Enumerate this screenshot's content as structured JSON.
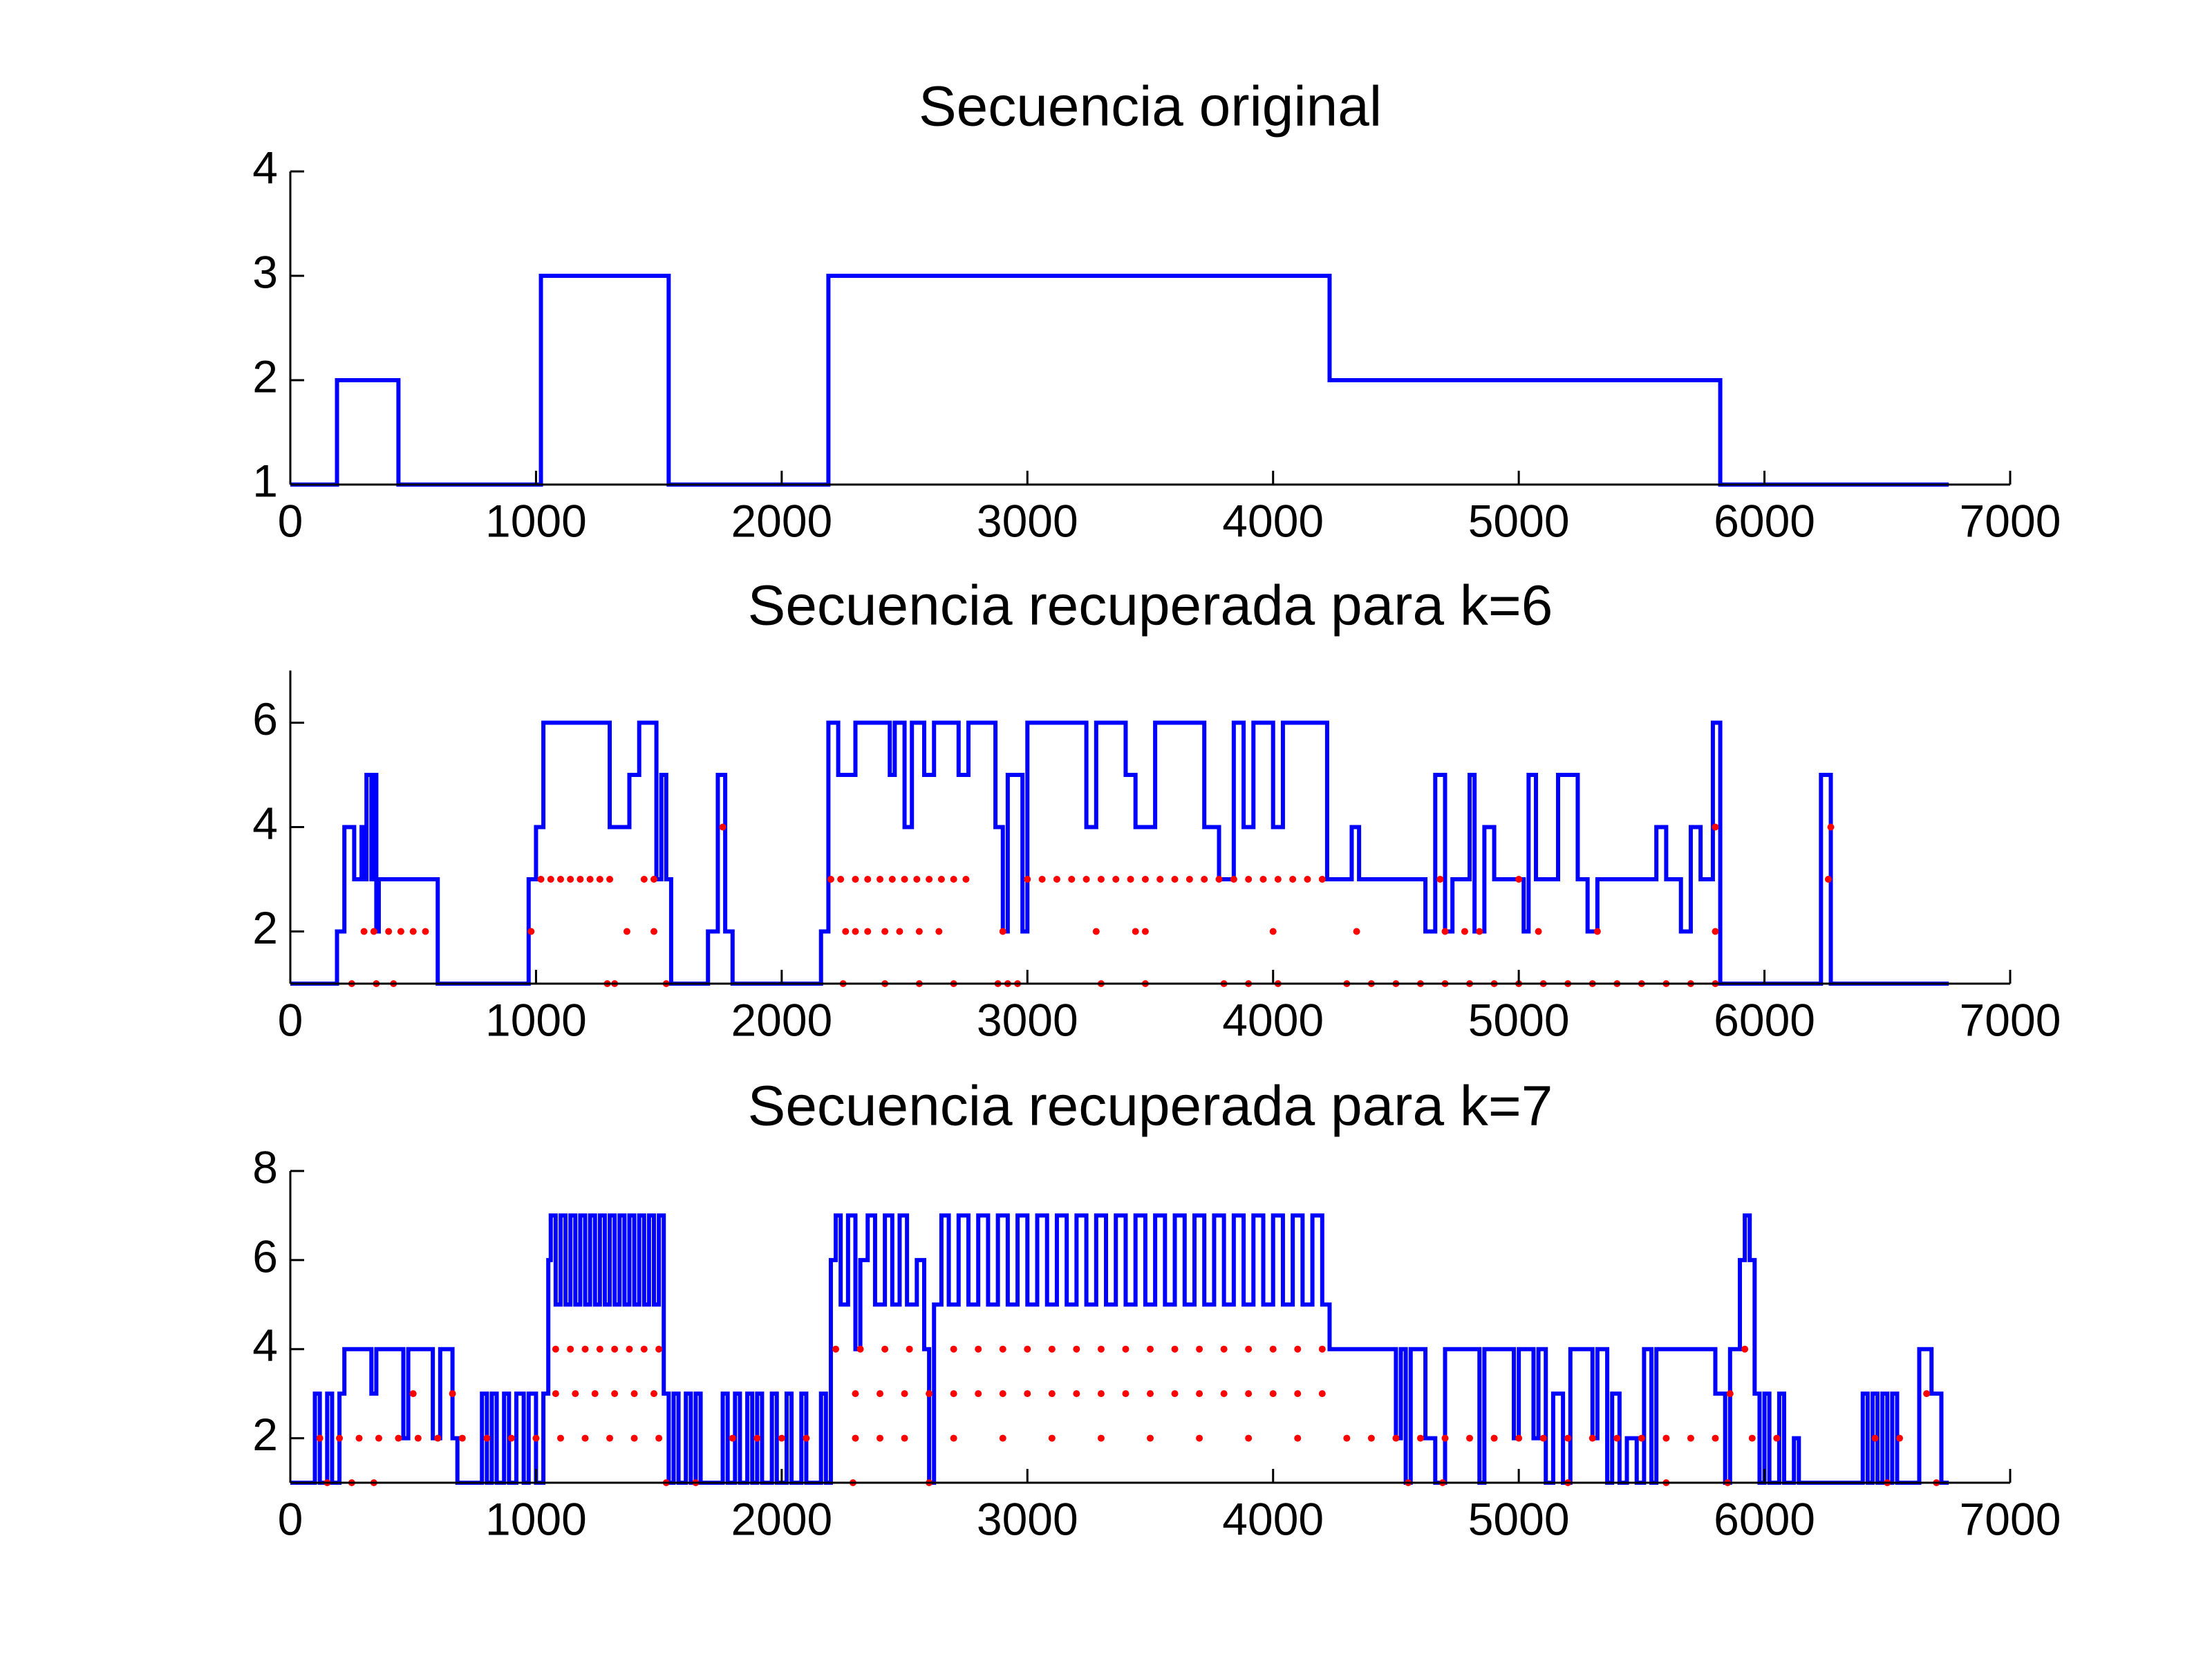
{
  "chart_data": [
    {
      "type": "line",
      "title": "Secuencia original",
      "xlim": [
        0,
        7000
      ],
      "xticks": [
        0,
        1000,
        2000,
        3000,
        4000,
        5000,
        6000,
        7000
      ],
      "ylim": [
        1,
        4
      ],
      "yticks": [
        1,
        2,
        3,
        4
      ],
      "series": [
        {
          "color": "#0000ff",
          "drawstyle": "steps-post",
          "x": [
            0,
            190,
            440,
            1020,
            1540,
            2190,
            4230,
            5820,
            6750
          ],
          "values": [
            1,
            2,
            1,
            3,
            1,
            3,
            2,
            1,
            1
          ]
        }
      ]
    },
    {
      "type": "line",
      "title": "Secuencia recuperada para k=6",
      "xlim": [
        0,
        7000
      ],
      "xticks": [
        0,
        1000,
        2000,
        3000,
        4000,
        5000,
        6000,
        7000
      ],
      "ylim": [
        1,
        7
      ],
      "yticks": [
        2,
        4,
        6
      ],
      "series": [
        {
          "color": "#0000ff",
          "drawstyle": "steps-post",
          "x": [
            0,
            190,
            220,
            260,
            290,
            300,
            310,
            330,
            340,
            350,
            360,
            600,
            970,
            1000,
            1030,
            1300,
            1380,
            1420,
            1490,
            1510,
            1530,
            1550,
            1700,
            1740,
            1770,
            1800,
            2160,
            2190,
            2230,
            2300,
            2440,
            2460,
            2500,
            2530,
            2580,
            2620,
            2720,
            2760,
            2870,
            2900,
            2920,
            2980,
            3000,
            3240,
            3280,
            3400,
            3440,
            3520,
            3720,
            3780,
            3840,
            3880,
            3920,
            4000,
            4040,
            4220,
            4320,
            4350,
            4620,
            4660,
            4700,
            4730,
            4800,
            4820,
            4860,
            4900,
            5020,
            5040,
            5070,
            5160,
            5240,
            5280,
            5320,
            5560,
            5600,
            5660,
            5700,
            5740,
            5790,
            5820,
            6230,
            6270,
            6750
          ],
          "values": [
            1,
            2,
            4,
            3,
            4,
            3,
            5,
            3,
            5,
            2,
            3,
            1,
            3,
            4,
            6,
            4,
            5,
            6,
            3,
            5,
            3,
            1,
            2,
            5,
            2,
            1,
            2,
            6,
            5,
            6,
            5,
            6,
            4,
            6,
            5,
            6,
            5,
            6,
            4,
            2,
            5,
            2,
            6,
            4,
            6,
            5,
            4,
            6,
            4,
            3,
            6,
            4,
            6,
            4,
            6,
            3,
            4,
            3,
            2,
            5,
            2,
            3,
            5,
            2,
            4,
            3,
            2,
            5,
            3,
            5,
            3,
            2,
            3,
            4,
            3,
            2,
            4,
            3,
            6,
            1,
            5,
            1,
            1
          ]
        },
        {
          "color": "#ff0000",
          "marker": "dot",
          "x": [
            1020,
            1060,
            1100,
            1140,
            1180,
            1220,
            1260,
            1300,
            1440,
            1480,
            2200,
            2240,
            2300,
            2350,
            2400,
            2450,
            2500,
            2550,
            2600,
            2650,
            2700,
            2750,
            3000,
            3060,
            3120,
            3180,
            3240,
            3300,
            3360,
            3420,
            3480,
            3540,
            3600,
            3660,
            3720,
            3780,
            3840,
            3900,
            3960,
            4020,
            4080,
            4140,
            4200,
            4680,
            5000,
            6260,
            300,
            340,
            400,
            450,
            500,
            550,
            980,
            1370,
            1480,
            2260,
            2300,
            2350,
            2420,
            2480,
            2560,
            2640,
            2900,
            3280,
            3440,
            3480,
            4000,
            4340,
            4700,
            4780,
            4840,
            5080,
            5320,
            5800,
            250,
            350,
            420,
            1290,
            1320,
            1530,
            2250,
            2420,
            2560,
            2700,
            2880,
            2920,
            2960,
            3300,
            3480,
            3800,
            3900,
            4020,
            4300,
            4400,
            4500,
            4600,
            4700,
            4800,
            4900,
            5000,
            5100,
            5200,
            5300,
            5400,
            5500,
            5600,
            5700,
            5800,
            1760,
            5800,
            6270
          ],
          "values": [
            3,
            3,
            3,
            3,
            3,
            3,
            3,
            3,
            3,
            3,
            3,
            3,
            3,
            3,
            3,
            3,
            3,
            3,
            3,
            3,
            3,
            3,
            3,
            3,
            3,
            3,
            3,
            3,
            3,
            3,
            3,
            3,
            3,
            3,
            3,
            3,
            3,
            3,
            3,
            3,
            3,
            3,
            3,
            3,
            3,
            3,
            2,
            2,
            2,
            2,
            2,
            2,
            2,
            2,
            2,
            2,
            2,
            2,
            2,
            2,
            2,
            2,
            2,
            2,
            2,
            2,
            2,
            2,
            2,
            2,
            2,
            2,
            2,
            2,
            1,
            1,
            1,
            1,
            1,
            1,
            1,
            1,
            1,
            1,
            1,
            1,
            1,
            1,
            1,
            1,
            1,
            1,
            1,
            1,
            1,
            1,
            1,
            1,
            1,
            1,
            1,
            1,
            1,
            1,
            1,
            1,
            1,
            1,
            4,
            4,
            4
          ]
        }
      ]
    },
    {
      "type": "line",
      "title": "Secuencia recuperada para k=7",
      "xlim": [
        0,
        7000
      ],
      "xticks": [
        0,
        1000,
        2000,
        3000,
        4000,
        5000,
        6000,
        7000
      ],
      "ylim": [
        1,
        8
      ],
      "yticks": [
        2,
        4,
        6,
        8
      ],
      "series": [
        {
          "color": "#0000ff",
          "drawstyle": "steps-post",
          "x": [
            0,
            100,
            120,
            150,
            170,
            200,
            220,
            330,
            350,
            460,
            480,
            580,
            610,
            660,
            680,
            780,
            800,
            820,
            840,
            870,
            890,
            920,
            950,
            970,
            1000,
            1030,
            1050,
            1060,
            1080,
            1100,
            1120,
            1140,
            1160,
            1180,
            1200,
            1220,
            1240,
            1260,
            1280,
            1300,
            1320,
            1340,
            1360,
            1380,
            1400,
            1420,
            1440,
            1460,
            1480,
            1500,
            1520,
            1540,
            1560,
            1580,
            1610,
            1630,
            1650,
            1670,
            1760,
            1780,
            1810,
            1830,
            1860,
            1880,
            1900,
            1920,
            1960,
            1980,
            2020,
            2040,
            2080,
            2100,
            2160,
            2180,
            2200,
            2220,
            2240,
            2270,
            2300,
            2320,
            2350,
            2380,
            2420,
            2450,
            2480,
            2510,
            2550,
            2580,
            2600,
            2620,
            2650,
            2680,
            2720,
            2760,
            2800,
            2840,
            2880,
            2920,
            2960,
            3000,
            3040,
            3080,
            3120,
            3160,
            3200,
            3240,
            3280,
            3320,
            3360,
            3400,
            3440,
            3480,
            3520,
            3560,
            3600,
            3640,
            3680,
            3720,
            3760,
            3800,
            3840,
            3880,
            3920,
            3960,
            4000,
            4040,
            4080,
            4120,
            4160,
            4200,
            4230,
            4500,
            4520,
            4540,
            4560,
            4620,
            4660,
            4700,
            4840,
            4860,
            4980,
            5000,
            5060,
            5080,
            5110,
            5140,
            5180,
            5210,
            5300,
            5320,
            5360,
            5380,
            5410,
            5440,
            5480,
            5510,
            5540,
            5560,
            5800,
            5840,
            5860,
            5900,
            5920,
            5940,
            5960,
            5980,
            6000,
            6020,
            6060,
            6080,
            6120,
            6140,
            6400,
            6420,
            6440,
            6460,
            6480,
            6500,
            6520,
            6540,
            6630,
            6680,
            6720,
            6750
          ],
          "values": [
            1,
            3,
            1,
            3,
            1,
            3,
            4,
            3,
            4,
            2,
            4,
            2,
            4,
            2,
            1,
            3,
            1,
            3,
            1,
            3,
            1,
            3,
            1,
            3,
            1,
            3,
            6,
            7,
            5,
            7,
            5,
            7,
            5,
            7,
            5,
            7,
            5,
            7,
            5,
            7,
            5,
            7,
            5,
            7,
            5,
            7,
            5,
            7,
            5,
            7,
            3,
            1,
            3,
            1,
            3,
            1,
            3,
            1,
            3,
            1,
            3,
            1,
            3,
            1,
            3,
            1,
            3,
            1,
            3,
            1,
            3,
            1,
            3,
            1,
            6,
            7,
            5,
            7,
            4,
            6,
            7,
            5,
            7,
            5,
            7,
            5,
            6,
            4,
            1,
            5,
            7,
            5,
            7,
            5,
            7,
            5,
            7,
            5,
            7,
            5,
            7,
            5,
            7,
            5,
            7,
            5,
            7,
            5,
            7,
            5,
            7,
            5,
            7,
            5,
            7,
            5,
            7,
            5,
            7,
            5,
            7,
            5,
            7,
            5,
            7,
            5,
            7,
            5,
            7,
            5,
            4,
            2,
            4,
            1,
            4,
            2,
            1,
            4,
            1,
            4,
            2,
            4,
            2,
            4,
            1,
            3,
            1,
            4,
            2,
            4,
            1,
            3,
            1,
            2,
            1,
            4,
            1,
            4,
            3,
            1,
            4,
            6,
            7,
            6,
            3,
            1,
            3,
            1,
            3,
            1,
            2,
            1,
            3,
            1,
            3,
            1,
            3,
            1,
            3,
            1,
            4,
            3,
            1,
            1
          ]
        },
        {
          "color": "#ff0000",
          "marker": "dot",
          "x": [
            1080,
            1140,
            1200,
            1260,
            1320,
            1380,
            1440,
            1500,
            2220,
            2320,
            2420,
            2520,
            2700,
            2800,
            2900,
            3000,
            3100,
            3200,
            3300,
            3400,
            3500,
            3600,
            3700,
            3800,
            3900,
            4000,
            4100,
            4200,
            5920,
            500,
            660,
            1080,
            1160,
            1240,
            1320,
            1400,
            1480,
            2300,
            2400,
            2500,
            2600,
            2700,
            2800,
            2900,
            3000,
            3100,
            3200,
            3300,
            3400,
            3500,
            3600,
            3700,
            3800,
            3900,
            4000,
            4100,
            4200,
            5860,
            6660,
            120,
            200,
            280,
            360,
            440,
            520,
            600,
            700,
            800,
            900,
            1000,
            1100,
            1200,
            1300,
            1400,
            1500,
            1800,
            1900,
            2000,
            2100,
            2300,
            2400,
            2500,
            2700,
            2900,
            3100,
            3300,
            3500,
            3700,
            3900,
            4100,
            4300,
            4400,
            4500,
            4600,
            4700,
            4800,
            4900,
            5000,
            5100,
            5200,
            5300,
            5400,
            5500,
            5600,
            5700,
            5800,
            5950,
            6050,
            6450,
            6550,
            150,
            250,
            340,
            1530,
            1650,
            2290,
            2600,
            4550,
            4690,
            5200,
            5600,
            5850,
            6500,
            6700
          ],
          "values": [
            4,
            4,
            4,
            4,
            4,
            4,
            4,
            4,
            4,
            4,
            4,
            4,
            4,
            4,
            4,
            4,
            4,
            4,
            4,
            4,
            4,
            4,
            4,
            4,
            4,
            4,
            4,
            4,
            4,
            3,
            3,
            3,
            3,
            3,
            3,
            3,
            3,
            3,
            3,
            3,
            3,
            3,
            3,
            3,
            3,
            3,
            3,
            3,
            3,
            3,
            3,
            3,
            3,
            3,
            3,
            3,
            3,
            3,
            3,
            2,
            2,
            2,
            2,
            2,
            2,
            2,
            2,
            2,
            2,
            2,
            2,
            2,
            2,
            2,
            2,
            2,
            2,
            2,
            2,
            2,
            2,
            2,
            2,
            2,
            2,
            2,
            2,
            2,
            2,
            2,
            2,
            2,
            2,
            2,
            2,
            2,
            2,
            2,
            2,
            2,
            2,
            2,
            2,
            2,
            2,
            2,
            2,
            2,
            2,
            2,
            1,
            1,
            1,
            1,
            1,
            1,
            1,
            1,
            1,
            1,
            1,
            1,
            1,
            1
          ]
        }
      ]
    }
  ]
}
